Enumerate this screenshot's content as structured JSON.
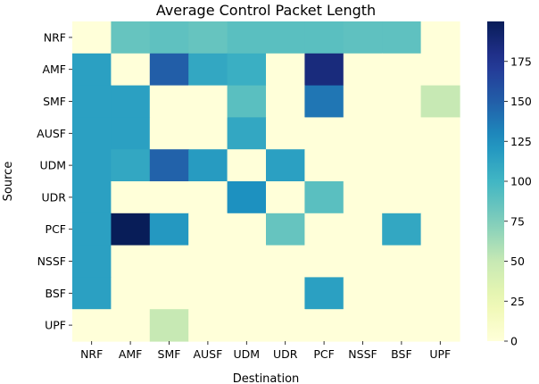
{
  "chart_data": {
    "type": "heatmap",
    "title": "Average Control Packet Length",
    "xlabel": "Destination",
    "ylabel": "Source",
    "x_categories": [
      "NRF",
      "AMF",
      "SMF",
      "AUSF",
      "UDM",
      "UDR",
      "PCF",
      "NSSF",
      "BSF",
      "UPF"
    ],
    "y_categories": [
      "NRF",
      "AMF",
      "SMF",
      "AUSF",
      "UDM",
      "UDR",
      "PCF",
      "NSSF",
      "BSF",
      "UPF"
    ],
    "values": [
      [
        0,
        85,
        88,
        85,
        90,
        90,
        90,
        88,
        88,
        0
      ],
      [
        115,
        0,
        150,
        110,
        105,
        0,
        185,
        0,
        0,
        0
      ],
      [
        115,
        115,
        0,
        0,
        90,
        0,
        138,
        0,
        0,
        50
      ],
      [
        115,
        115,
        0,
        0,
        110,
        0,
        0,
        0,
        0,
        0
      ],
      [
        115,
        110,
        148,
        118,
        0,
        115,
        0,
        0,
        0,
        0
      ],
      [
        115,
        0,
        0,
        0,
        125,
        0,
        90,
        0,
        0,
        0
      ],
      [
        115,
        200,
        120,
        0,
        0,
        85,
        0,
        0,
        110,
        0
      ],
      [
        115,
        0,
        0,
        0,
        0,
        0,
        0,
        0,
        0,
        0
      ],
      [
        115,
        0,
        0,
        0,
        0,
        0,
        115,
        0,
        0,
        0
      ],
      [
        0,
        0,
        50,
        0,
        0,
        0,
        0,
        0,
        0,
        0
      ]
    ],
    "colorbar": {
      "min": 0,
      "max": 200,
      "ticks": [
        0,
        25,
        50,
        75,
        100,
        125,
        150,
        175
      ],
      "colormap": "YlGnBu"
    },
    "grid": false
  }
}
